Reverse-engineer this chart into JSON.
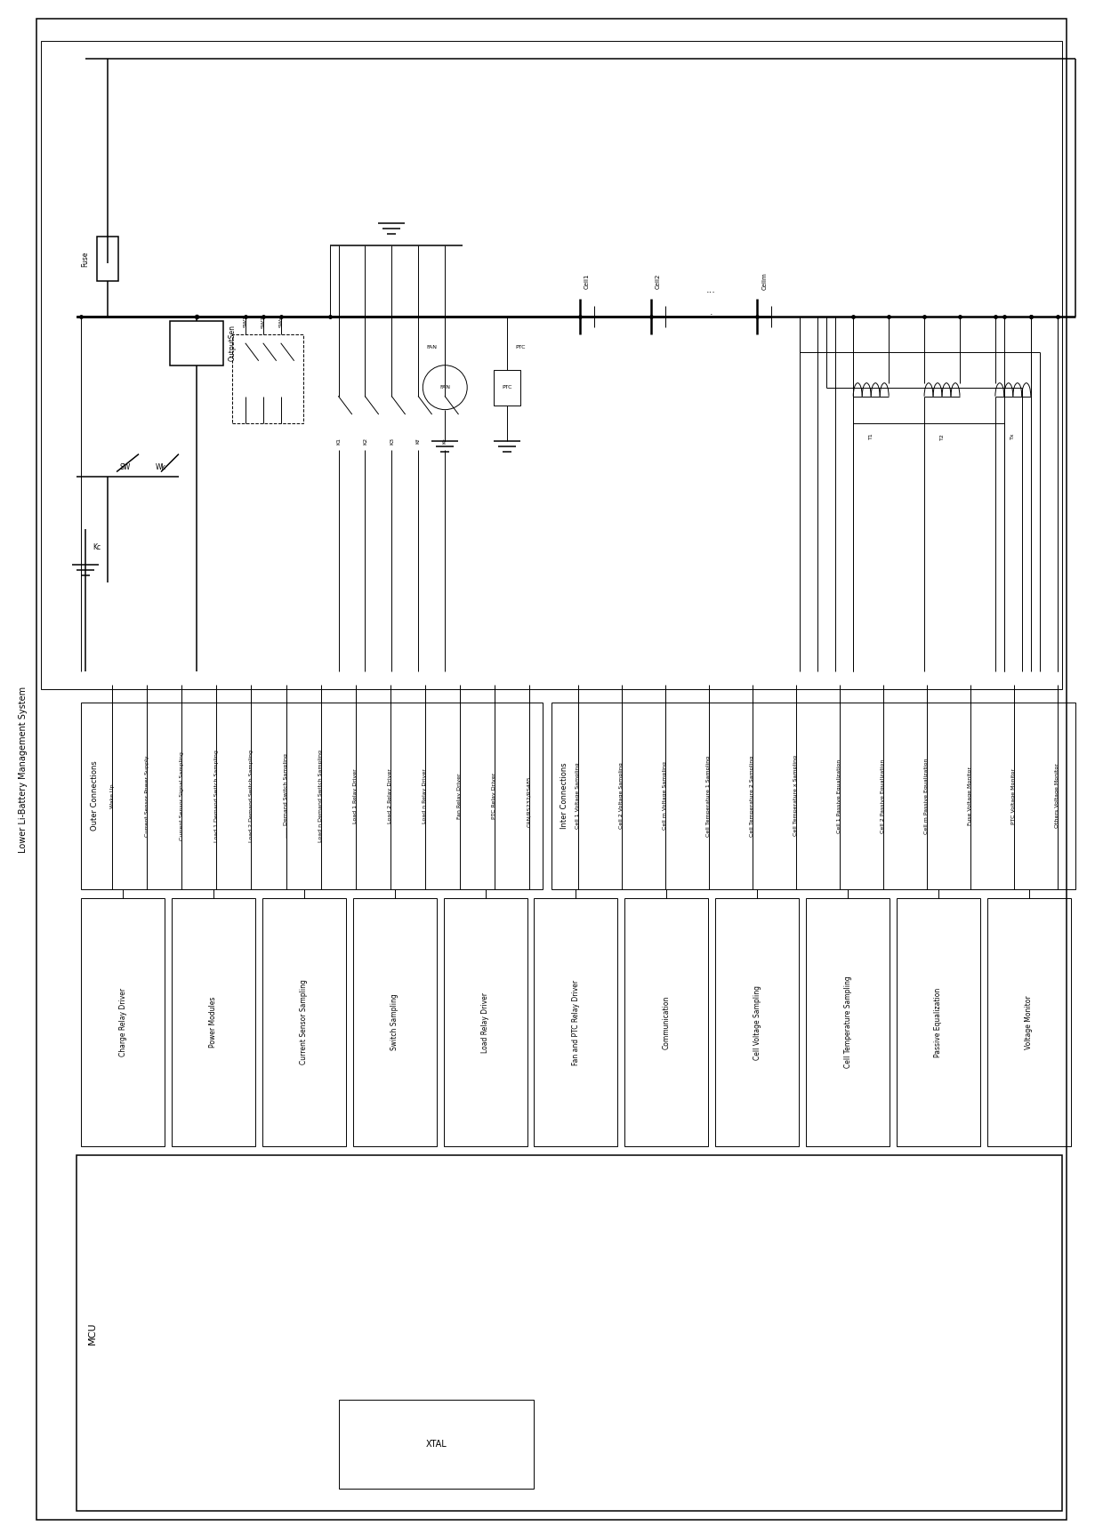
{
  "title": "Lower Li-Battery Management System",
  "bg_color": "#ffffff",
  "line_color": "#000000",
  "fig_width": 12.4,
  "fig_height": 17.25,
  "dpi": 100,
  "module_labels": [
    "Charge Relay Driver",
    "Power Modules",
    "Current Sensor Sampling",
    "Switch Sampling",
    "Load Relay Driver",
    "Fan and PTC Relay Driver",
    "Communication",
    "Cell Voltage Sampling",
    "Cell Temperature Sampling",
    "Passive Equalization",
    "Voltage Monitor"
  ],
  "outer_connection_labels": [
    "Wake Up",
    "Current Sensor Power Supply",
    "Current Sensor Signal Sampling",
    "Load 1 Demand Switch Sampling",
    "Load 2 Demand Switch Sampling",
    "...... Demand Switch Sampling",
    "Load n Demand Switch Sampling",
    "Load 1 Relay Driver",
    "Load 2 Relay Driver",
    "Load n Relay Driver",
    "Fan Relay Driver",
    "PTC Relay Driver",
    "CAN/RS232/RS485......"
  ],
  "inner_connection_labels": [
    "Cell 1 Voltage Sampling",
    "Cell 2 Voltage Sampling",
    "Cell m Voltage Sampling",
    "Cell Temperature 1 Sampling",
    "Cell Temperature 2 Sampling",
    "Cell Temperature x Sampling",
    "Cell 1 Passive Equalization",
    "Cell 2 Passive Equalization",
    "Cell m Passive Equalization",
    "Fuse Voltage Monitor",
    "PTC Voltage Monitor",
    "Others Voltage Monitor"
  ],
  "xtal_label": "XTAL",
  "outer_connections_title": "Outer Connections",
  "inner_connections_title": "Inter Connections",
  "mcu_label": "MCU"
}
